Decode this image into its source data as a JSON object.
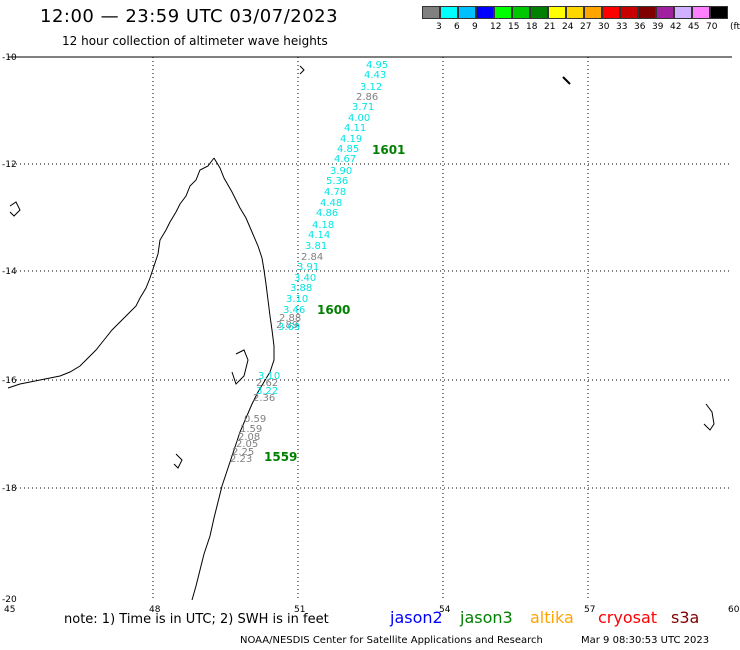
{
  "header": {
    "title": "12:00 — 23:59 UTC 03/07/2023",
    "subtitle": "12 hour collection of altimeter wave heights"
  },
  "legend": {
    "colors": [
      "#808080",
      "#00ffff",
      "#00bfff",
      "#0000ff",
      "#00ff00",
      "#00c800",
      "#008000",
      "#ffff00",
      "#ffd700",
      "#ffa500",
      "#ff0000",
      "#c80000",
      "#800000",
      "#a020a0",
      "#d0b0ff",
      "#ff80ff",
      "#000000"
    ],
    "labels": [
      "3",
      "6",
      "9",
      "12",
      "15",
      "18",
      "21",
      "24",
      "27",
      "30",
      "33",
      "36",
      "39",
      "42",
      "45",
      "70",
      "(ft)"
    ]
  },
  "axes": {
    "lat_labels": [
      "-10",
      "-12",
      "-14",
      "-16",
      "-18",
      "-20"
    ],
    "lon_labels": [
      "45",
      "48",
      "51",
      "54",
      "57",
      "60"
    ]
  },
  "track": {
    "points": [
      {
        "value": "4.95",
        "color": "#00e5e5"
      },
      {
        "value": "4.43",
        "color": "#00e5e5"
      },
      {
        "value": "3.12",
        "color": "#00e5e5"
      },
      {
        "value": "2.86",
        "color": "#808080"
      },
      {
        "value": "3.71",
        "color": "#00e5e5"
      },
      {
        "value": "4.00",
        "color": "#00e5e5"
      },
      {
        "value": "4.11",
        "color": "#00e5e5"
      },
      {
        "value": "4.19",
        "color": "#00e5e5"
      },
      {
        "value": "4.85",
        "color": "#00e5e5"
      },
      {
        "value": "4.67",
        "color": "#00e5e5"
      },
      {
        "value": "3.90",
        "color": "#00e5e5"
      },
      {
        "value": "5.36",
        "color": "#00e5e5"
      },
      {
        "value": "4.78",
        "color": "#00e5e5"
      },
      {
        "value": "4.48",
        "color": "#00e5e5"
      },
      {
        "value": "4.86",
        "color": "#00e5e5"
      },
      {
        "value": "4.18",
        "color": "#00e5e5"
      },
      {
        "value": "4.14",
        "color": "#00e5e5"
      },
      {
        "value": "3.81",
        "color": "#00e5e5"
      },
      {
        "value": "2.84",
        "color": "#808080"
      },
      {
        "value": "3.91",
        "color": "#00e5e5"
      },
      {
        "value": "3.40",
        "color": "#00e5e5"
      },
      {
        "value": "3.88",
        "color": "#00e5e5"
      },
      {
        "value": "3.10",
        "color": "#00e5e5"
      },
      {
        "value": "3.46",
        "color": "#00e5e5"
      },
      {
        "value": "2.88",
        "color": "#808080"
      },
      {
        "value": "2.89",
        "color": "#808080"
      },
      {
        "value": "3.69",
        "color": "#00e5e5"
      },
      {
        "value": "3.10",
        "color": "#00e5e5"
      },
      {
        "value": "2.62",
        "color": "#808080"
      },
      {
        "value": "3.22",
        "color": "#00e5e5"
      },
      {
        "value": "2.36",
        "color": "#808080"
      },
      {
        "value": "0.59",
        "color": "#808080"
      },
      {
        "value": "1.59",
        "color": "#808080"
      },
      {
        "value": "2.08",
        "color": "#808080"
      },
      {
        "value": "2.05",
        "color": "#808080"
      },
      {
        "value": "2.25",
        "color": "#808080"
      },
      {
        "value": "2.23",
        "color": "#808080"
      }
    ],
    "time_labels": [
      {
        "text": "1601",
        "color": "#008000"
      },
      {
        "text": "1600",
        "color": "#008000"
      },
      {
        "text": "1559",
        "color": "#008000"
      }
    ]
  },
  "footer": {
    "note": "note:  1) Time is in UTC; 2) SWH is in feet",
    "missions": [
      {
        "name": "jason2",
        "color": "#0000ff"
      },
      {
        "name": "jason3",
        "color": "#008000"
      },
      {
        "name": "altika",
        "color": "#ffa500"
      },
      {
        "name": "cryosat",
        "color": "#ff0000"
      },
      {
        "name": "s3a",
        "color": "#800000"
      }
    ],
    "credit": "NOAA/NESDIS Center for Satellite Applications and Research",
    "timestamp": "Mar  9 08:30:53 UTC 2023"
  }
}
